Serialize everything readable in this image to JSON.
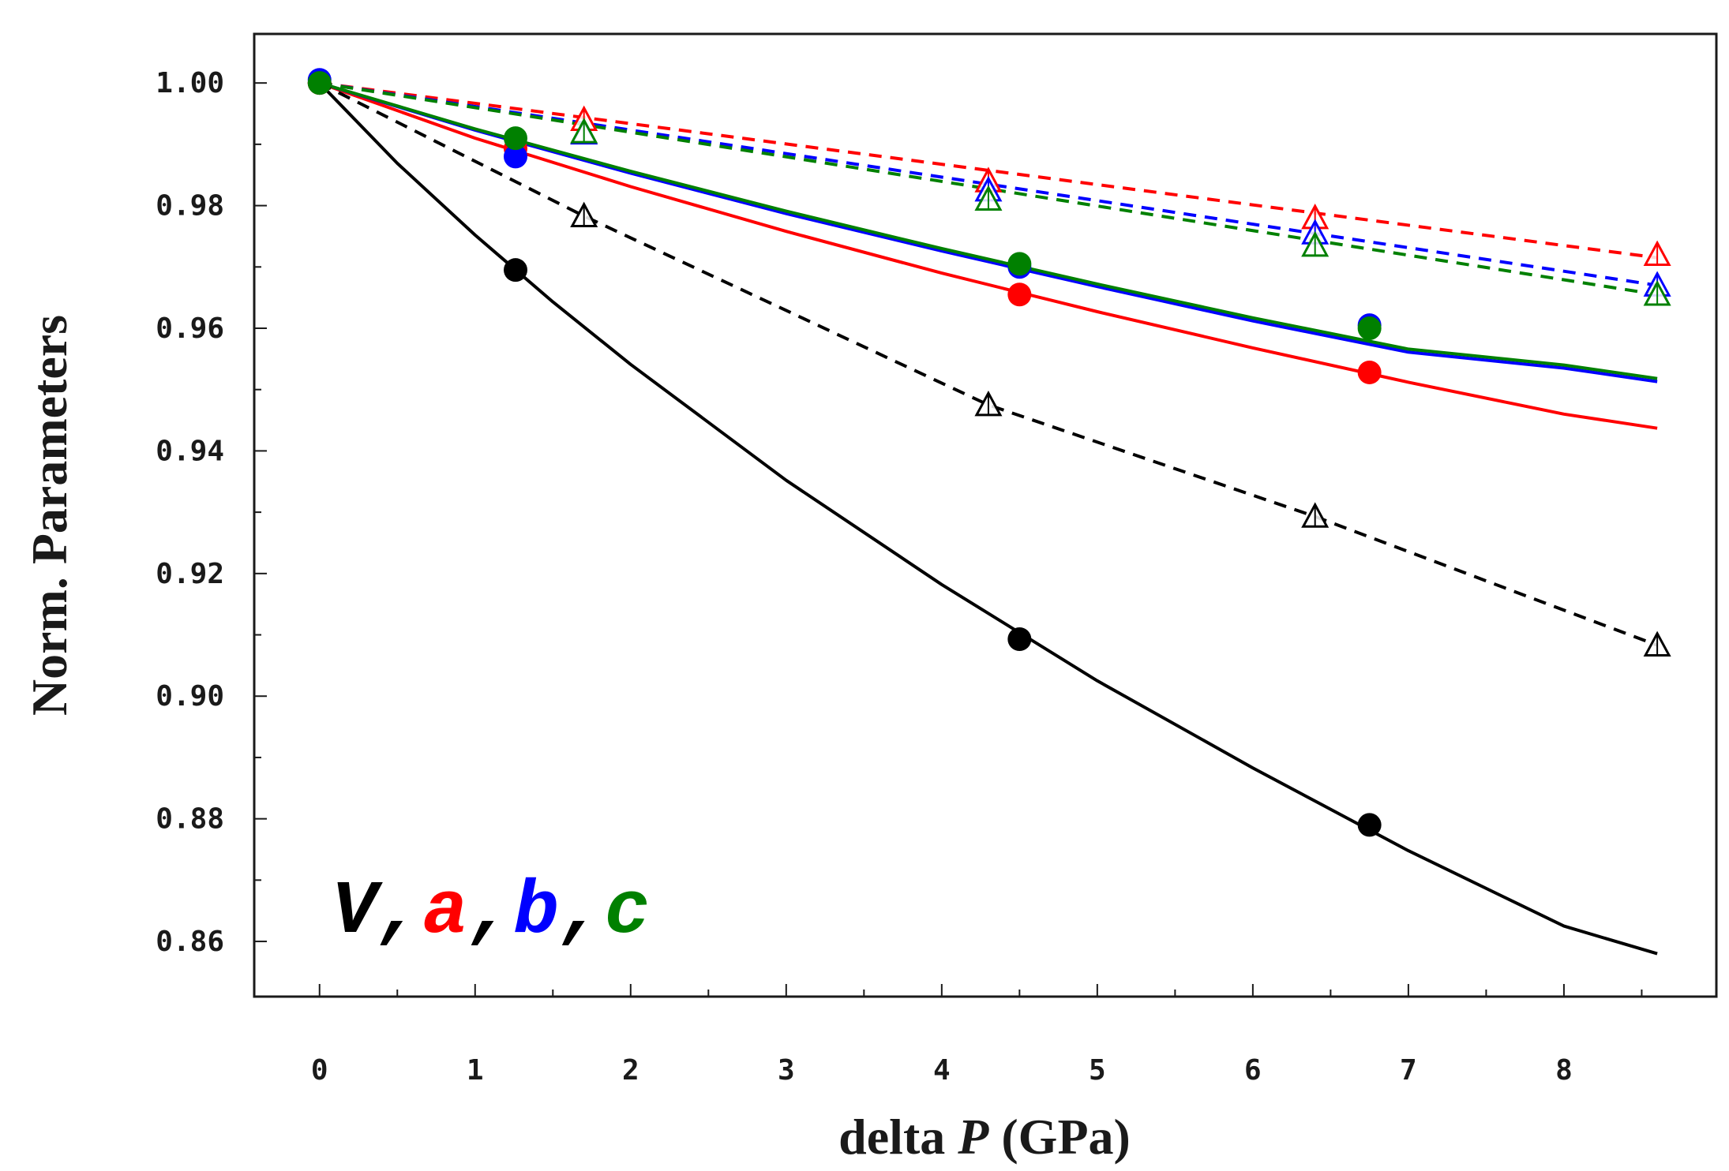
{
  "chart_data": {
    "type": "scatter",
    "xlabel_prefix": "delta ",
    "xlabel_var": "P",
    "xlabel_suffix": " (GPa)",
    "ylabel": "Norm. Parameters",
    "xlim": [
      -0.42,
      8.98
    ],
    "ylim": [
      0.851,
      1.008
    ],
    "xticks": [
      0,
      1,
      2,
      3,
      4,
      5,
      6,
      7,
      8
    ],
    "xtick_labels": [
      "0",
      "1",
      "2",
      "3",
      "4",
      "5",
      "6",
      "7",
      "8"
    ],
    "yticks": [
      0.86,
      0.88,
      0.9,
      0.92,
      0.94,
      0.96,
      0.98,
      1.0
    ],
    "ytick_labels": [
      "0.86",
      "0.88",
      "0.90",
      "0.92",
      "0.94",
      "0.96",
      "0.98",
      "1.00"
    ],
    "legend": {
      "position": "bottom-left",
      "items": [
        {
          "label": "V",
          "color": "#000000",
          "sep": ","
        },
        {
          "label": "a",
          "color": "#ff0000",
          "sep": ","
        },
        {
          "label": "b",
          "color": "#0000ff",
          "sep": ","
        },
        {
          "label": "c",
          "color": "#008000",
          "sep": ""
        }
      ]
    },
    "series": [
      {
        "name": "V (circles)",
        "color": "#000000",
        "marker": "filled-circle",
        "x": [
          0,
          1.26,
          4.5,
          6.75
        ],
        "y": [
          1.0,
          0.9695,
          0.9093,
          0.879
        ],
        "fit": {
          "style": "solid",
          "x": [
            0,
            0.5,
            1,
            1.5,
            2,
            3,
            4,
            5,
            6,
            7,
            8,
            8.6
          ],
          "y": [
            1.0,
            0.9869,
            0.9752,
            0.9643,
            0.9541,
            0.9352,
            0.9182,
            0.9025,
            0.8883,
            0.8748,
            0.8625,
            0.858
          ]
        }
      },
      {
        "name": "a (circles)",
        "color": "#ff0000",
        "marker": "filled-circle",
        "x": [
          0,
          1.26,
          4.5,
          6.75
        ],
        "y": [
          1.0,
          0.9893,
          0.9655,
          0.9528
        ],
        "fit": {
          "style": "solid",
          "x": [
            0,
            1,
            2,
            3,
            4,
            5,
            6,
            7,
            8,
            8.6
          ],
          "y": [
            1.0,
            0.991,
            0.9831,
            0.9758,
            0.969,
            0.9627,
            0.9568,
            0.9512,
            0.946,
            0.9437
          ]
        }
      },
      {
        "name": "b (circles)",
        "color": "#0000ff",
        "marker": "filled-circle",
        "x": [
          0,
          1.26,
          4.5,
          6.75
        ],
        "y": [
          1.0005,
          0.988,
          0.97,
          0.9605
        ],
        "fit": {
          "style": "solid",
          "x": [
            0,
            1,
            2,
            3,
            4,
            5,
            6,
            7,
            8,
            8.6
          ],
          "y": [
            1.0,
            0.9923,
            0.9853,
            0.9787,
            0.9726,
            0.9668,
            0.9612,
            0.9561,
            0.9535,
            0.9513
          ]
        }
      },
      {
        "name": "c (circles)",
        "color": "#008000",
        "marker": "filled-circle",
        "x": [
          0,
          1.26,
          4.5,
          6.75
        ],
        "y": [
          1.0,
          0.991,
          0.9705,
          0.96
        ],
        "fit": {
          "style": "solid",
          "x": [
            0,
            1,
            2,
            3,
            4,
            5,
            6,
            7,
            8,
            8.6
          ],
          "y": [
            1.0,
            0.9925,
            0.9856,
            0.9791,
            0.973,
            0.9672,
            0.9617,
            0.9566,
            0.954,
            0.9518
          ]
        }
      },
      {
        "name": "V (triangles)",
        "color": "#000000",
        "marker": "open-triangle",
        "x": [
          1.7,
          4.3,
          6.4,
          8.6
        ],
        "y": [
          0.9783,
          0.9475,
          0.9293,
          0.9083
        ],
        "fit": {
          "style": "dashed",
          "x": [
            0,
            1.7,
            4.3,
            6.4,
            8.6
          ],
          "y": [
            1.0,
            0.9783,
            0.9475,
            0.9293,
            0.9083
          ]
        }
      },
      {
        "name": "a (triangles)",
        "color": "#ff0000",
        "marker": "open-triangle",
        "x": [
          1.7,
          4.3,
          6.4,
          8.6
        ],
        "y": [
          0.994,
          0.984,
          0.978,
          0.972
        ],
        "fit": {
          "style": "dashed",
          "x": [
            0,
            8.6
          ],
          "y": [
            1.0,
            0.9715
          ]
        }
      },
      {
        "name": "b (triangles)",
        "color": "#0000ff",
        "marker": "open-triangle",
        "x": [
          1.7,
          4.3,
          6.4,
          8.6
        ],
        "y": [
          0.9918,
          0.9825,
          0.9755,
          0.967
        ],
        "fit": {
          "style": "dashed",
          "x": [
            0,
            8.6
          ],
          "y": [
            1.0,
            0.967
          ]
        }
      },
      {
        "name": "c (triangles)",
        "color": "#008000",
        "marker": "open-triangle",
        "x": [
          1.7,
          4.3,
          6.4,
          8.6
        ],
        "y": [
          0.992,
          0.981,
          0.9735,
          0.9655
        ],
        "fit": {
          "style": "dashed",
          "x": [
            0,
            8.6
          ],
          "y": [
            1.0,
            0.9655
          ]
        }
      }
    ]
  }
}
